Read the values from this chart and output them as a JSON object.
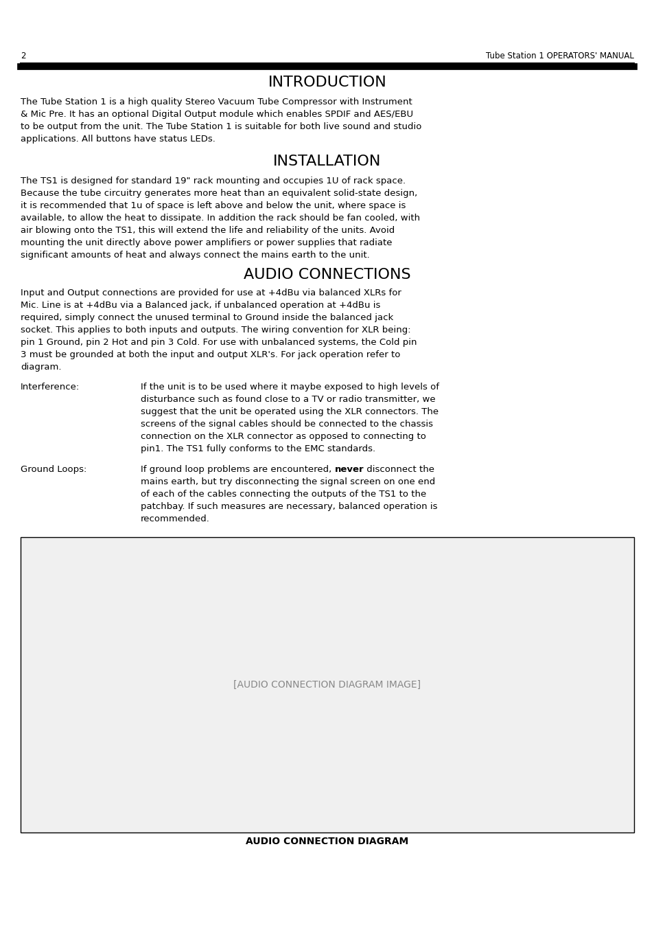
{
  "page_number": "2",
  "header_right": "Tube Station 1 OPERATORS' MANUAL",
  "title1": "INTRODUCTION",
  "intro_text": "The Tube Station 1 is a high quality Stereo Vacuum Tube Compressor with Instrument & Mic Pre. It has an optional Digital Output module which enables SPDIF and AES/EBU to be output from the unit. The Tube Station 1 is suitable for both live sound and studio applications. All buttons have status LEDs.",
  "title2": "INSTALLATION",
  "install_text": "The TS1 is designed for standard 19\" rack mounting and occupies 1U of rack space. Because the tube circuitry generates more heat than an equivalent solid-state design, it is recommended that 1u of space is left above and below the unit, where space is available, to allow the heat to dissipate. In addition the rack should be fan cooled, with air blowing onto the TS1, this will extend the life and reliability of the units. Avoid mounting the unit directly above power amplifiers or power supplies that radiate significant amounts of heat and always connect the mains earth to the unit.",
  "title3": "AUDIO CONNECTIONS",
  "audio_text": "Input and Output connections are provided for use at +4dBu via balanced XLRs for Mic. Line is at +4dBu via a Balanced jack, if unbalanced operation at +4dBu is required, simply connect the unused terminal to Ground inside the balanced jack socket. This applies to both inputs and outputs. The wiring convention for XLR being: pin 1 Ground, pin 2 Hot and pin 3 Cold. For use with unbalanced systems, the Cold pin 3 must be grounded at both the input and output XLR's. For jack operation refer to diagram.",
  "interference_label": "Interference:",
  "interference_text": "If the unit is to be used where it maybe exposed to high levels of disturbance such as found close to a TV or radio transmitter, we suggest that the unit be operated using the XLR connectors. The screens of the signal cables should be connected to the chassis connection on the XLR connector as opposed to connecting to pin1. The TS1 fully conforms to the EMC standards.",
  "ground_label": "Ground Loops:",
  "ground_text": "If ground loop problems are encountered, never disconnect the mains earth, but try disconnecting the signal screen on one end of each of the cables connecting the outputs of the TS1 to the patchbay. If such measures are necessary, balanced operation is recommended.",
  "ground_bold_word": "never",
  "diagram_caption": "AUDIO CONNECTION DIAGRAM",
  "bg_color": "#ffffff",
  "text_color": "#000000",
  "header_line_color": "#000000",
  "font_family": "DejaVu Sans",
  "body_fontsize": 9.5,
  "title_fontsize": 16,
  "header_fontsize": 8.5
}
